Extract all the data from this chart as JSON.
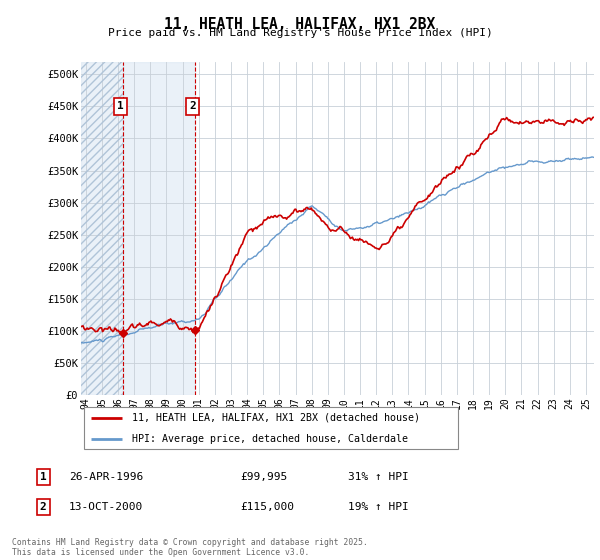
{
  "title1": "11, HEATH LEA, HALIFAX, HX1 2BX",
  "title2": "Price paid vs. HM Land Registry's House Price Index (HPI)",
  "ylabel_ticks": [
    "£0",
    "£50K",
    "£100K",
    "£150K",
    "£200K",
    "£250K",
    "£300K",
    "£350K",
    "£400K",
    "£450K",
    "£500K"
  ],
  "ytick_vals": [
    0,
    50000,
    100000,
    150000,
    200000,
    250000,
    300000,
    350000,
    400000,
    450000,
    500000
  ],
  "ylim": [
    0,
    520000
  ],
  "xlim_start": 1993.7,
  "xlim_end": 2025.5,
  "hpi_color": "#6699cc",
  "price_color": "#cc0000",
  "purchase1_year": 1996.32,
  "purchase1_price": 99995,
  "purchase2_year": 2000.79,
  "purchase2_price": 115000,
  "legend_label1": "11, HEATH LEA, HALIFAX, HX1 2BX (detached house)",
  "legend_label2": "HPI: Average price, detached house, Calderdale",
  "annotation1_label": "1",
  "annotation1_date": "26-APR-1996",
  "annotation1_price": "£99,995",
  "annotation1_hpi": "31% ↑ HPI",
  "annotation2_label": "2",
  "annotation2_date": "13-OCT-2000",
  "annotation2_price": "£115,000",
  "annotation2_hpi": "19% ↑ HPI",
  "footer": "Contains HM Land Registry data © Crown copyright and database right 2025.\nThis data is licensed under the Open Government Licence v3.0.",
  "hatch_color": "#c8d8e8",
  "solid_bg_color": "#dce8f4",
  "plot_bg": "#ffffff",
  "fig_bg": "#ffffff",
  "grid_color": "#c8d0d8"
}
